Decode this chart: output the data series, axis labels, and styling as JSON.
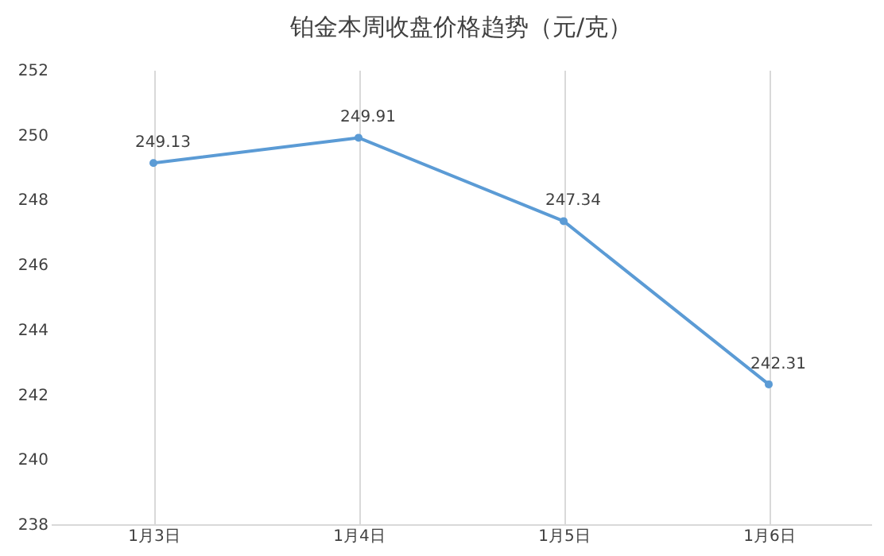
{
  "chart_data": {
    "type": "line",
    "title": "铂金本周收盘价格趋势（元/克）",
    "categories": [
      "1月3日",
      "1月4日",
      "1月5日",
      "1月6日"
    ],
    "series": [
      {
        "color": "#5b9bd5",
        "values": [
          249.13,
          249.91,
          247.34,
          242.31
        ]
      }
    ],
    "ylim": [
      238,
      252
    ],
    "yticks": [
      238,
      240,
      242,
      244,
      246,
      248,
      250,
      252
    ],
    "grid": "x",
    "marker": "circle",
    "line_style": "solid",
    "data_labels": true
  }
}
